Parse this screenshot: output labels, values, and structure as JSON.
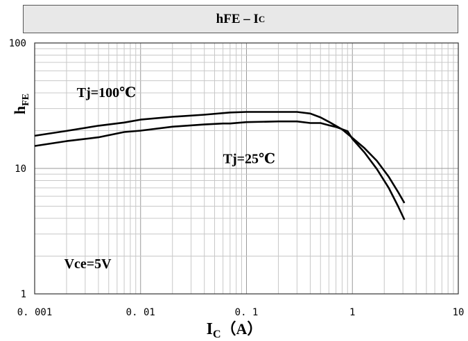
{
  "chart_data": {
    "type": "line",
    "title": {
      "main": "hFE – I",
      "sub": "C"
    },
    "xlabel": {
      "main": "I",
      "sub": "C",
      "suffix": "（A）"
    },
    "ylabel": {
      "main": "h",
      "sub": "FE"
    },
    "xscale": "log",
    "yscale": "log",
    "xlim": [
      0.001,
      10
    ],
    "ylim": [
      1,
      100
    ],
    "grid": true,
    "xticks": [
      {
        "value": 0.001,
        "label": "0. 001"
      },
      {
        "value": 0.01,
        "label": "0. 01"
      },
      {
        "value": 0.1,
        "label": "0. 1"
      },
      {
        "value": 1,
        "label": "1"
      },
      {
        "value": 10,
        "label": "10"
      }
    ],
    "yticks": [
      {
        "value": 1,
        "label": "1"
      },
      {
        "value": 10,
        "label": "10"
      },
      {
        "value": 100,
        "label": "100"
      }
    ],
    "annotations": [
      {
        "text": "Tj=100℃",
        "x": 0.0025,
        "y": 37
      },
      {
        "text": "Tj=25℃",
        "x": 0.06,
        "y": 11
      },
      {
        "text": "Vce=5V",
        "x": 0.0019,
        "y": 1.6
      }
    ],
    "series": [
      {
        "name": "Tj=100℃",
        "x": [
          0.001,
          0.002,
          0.004,
          0.007,
          0.01,
          0.02,
          0.04,
          0.07,
          0.1,
          0.2,
          0.3,
          0.4,
          0.5,
          0.6,
          0.8,
          1.0,
          1.3,
          1.7,
          2.2,
          2.7,
          3.1
        ],
        "y": [
          18.2,
          19.9,
          21.9,
          23.2,
          24.5,
          25.8,
          26.8,
          27.9,
          28.2,
          28.2,
          28.2,
          27.4,
          25.5,
          23.5,
          20.5,
          17.5,
          14.5,
          11.5,
          8.6,
          6.5,
          5.3
        ]
      },
      {
        "name": "Tj=25℃",
        "x": [
          0.001,
          0.002,
          0.004,
          0.007,
          0.01,
          0.02,
          0.04,
          0.06,
          0.07,
          0.1,
          0.2,
          0.3,
          0.4,
          0.5,
          0.6,
          0.7,
          0.9,
          1.0,
          1.3,
          1.7,
          2.2,
          2.7,
          3.1
        ],
        "y": [
          15.1,
          16.5,
          17.7,
          19.5,
          20.0,
          21.5,
          22.4,
          22.8,
          22.8,
          23.4,
          23.7,
          23.7,
          23.0,
          23.0,
          22.1,
          21.4,
          19.8,
          17.2,
          13.4,
          9.9,
          7.0,
          5.0,
          3.9
        ]
      }
    ]
  }
}
